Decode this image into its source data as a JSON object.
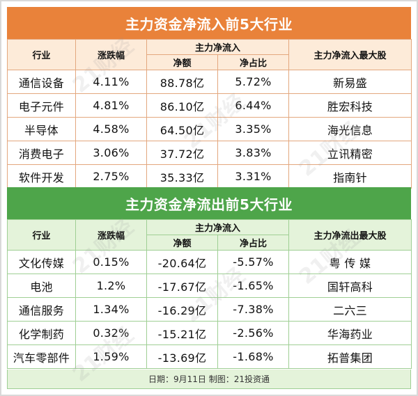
{
  "inflow": {
    "title": "主力资金净流入前5大行业",
    "headers": {
      "industry": "行业",
      "change": "涨跌幅",
      "main_flow": "主力净流入",
      "net_amount": "净额",
      "net_ratio": "净占比",
      "top_stock": "主力净流入最大股"
    },
    "rows": [
      {
        "industry": "通信设备",
        "change": "4.11%",
        "net_amount": "88.78亿",
        "net_ratio": "5.72%",
        "top_stock": "新易盛"
      },
      {
        "industry": "电子元件",
        "change": "4.81%",
        "net_amount": "86.10亿",
        "net_ratio": "6.44%",
        "top_stock": "胜宏科技"
      },
      {
        "industry": "半导体",
        "change": "4.58%",
        "net_amount": "64.50亿",
        "net_ratio": "3.35%",
        "top_stock": "海光信息"
      },
      {
        "industry": "消费电子",
        "change": "3.06%",
        "net_amount": "37.72亿",
        "net_ratio": "3.83%",
        "top_stock": "立讯精密"
      },
      {
        "industry": "软件开发",
        "change": "2.75%",
        "net_amount": "35.33亿",
        "net_ratio": "3.31%",
        "top_stock": "指南针"
      }
    ]
  },
  "outflow": {
    "title": "主力资金净流出前5大行业",
    "headers": {
      "industry": "行业",
      "change": "涨跌幅",
      "main_flow": "主力净流入",
      "net_amount": "净额",
      "net_ratio": "净占比",
      "top_stock": "主力净流出最大股"
    },
    "rows": [
      {
        "industry": "文化传媒",
        "change": "0.15%",
        "net_amount": "-20.64亿",
        "net_ratio": "-5.57%",
        "top_stock": "粤 传 媒"
      },
      {
        "industry": "电池",
        "change": "1.2%",
        "net_amount": "-17.67亿",
        "net_ratio": "-1.65%",
        "top_stock": "国轩高科"
      },
      {
        "industry": "通信服务",
        "change": "1.34%",
        "net_amount": "-16.29亿",
        "net_ratio": "-7.38%",
        "top_stock": "二六三"
      },
      {
        "industry": "化学制药",
        "change": "0.32%",
        "net_amount": "-15.21亿",
        "net_ratio": "-2.56%",
        "top_stock": "华海药业"
      },
      {
        "industry": "汽车零部件",
        "change": "1.59%",
        "net_amount": "-13.69亿",
        "net_ratio": "-1.68%",
        "top_stock": "拓普集团"
      }
    ]
  },
  "footer": "日期：9月11日 制图：21投资通",
  "watermark": "21财经",
  "colors": {
    "inflow_accent": "#e9823a",
    "outflow_accent": "#4ea54a"
  }
}
